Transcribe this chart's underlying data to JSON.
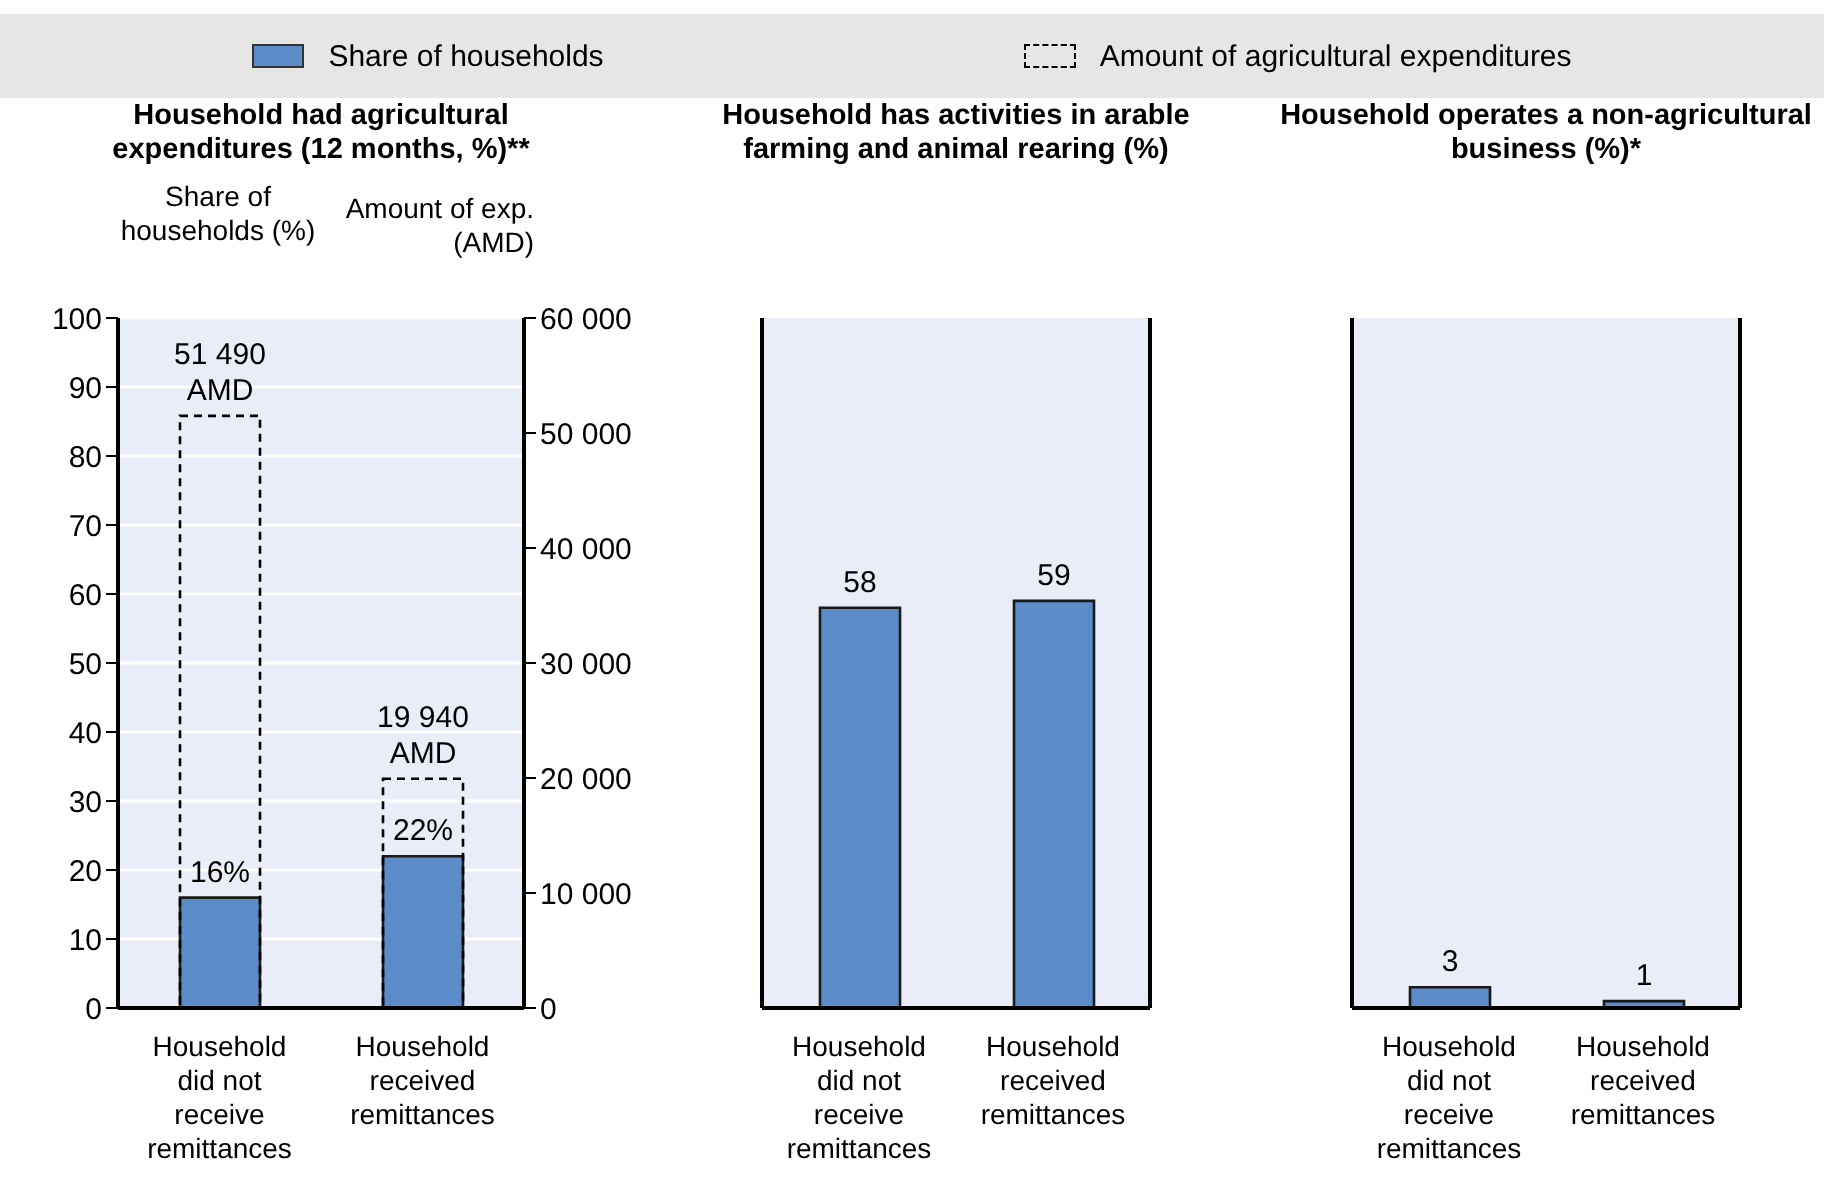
{
  "chart_data": [
    {
      "type": "bar",
      "title": "Household had agricultural expenditures (12 months, %)**",
      "ylabel": "Share of households (%)",
      "y2label": "Amount of exp. (AMD)",
      "categories": [
        "Household did not receive remittances",
        "Household received remittances"
      ],
      "series": [
        {
          "name": "Share of households",
          "color": "#5b8bc8",
          "values": [
            16,
            22
          ],
          "value_labels": [
            "16%",
            "22%"
          ]
        },
        {
          "name": "Amount of agricultural expenditures",
          "color": "#000000",
          "line_style": "dashed",
          "axis": "y2",
          "values": [
            51490,
            19940
          ],
          "value_labels": [
            "51 490 AMD",
            "19 940 AMD"
          ]
        }
      ],
      "ylim": [
        0,
        100
      ],
      "yticks": [
        0,
        10,
        20,
        30,
        40,
        50,
        60,
        70,
        80,
        90,
        100
      ],
      "y2lim": [
        0,
        60000
      ],
      "y2ticks": [
        0,
        {
          "value": 10000,
          "label": "10 000"
        },
        {
          "value": 20000,
          "label": "20 000"
        },
        {
          "value": 30000,
          "label": "30 000"
        },
        {
          "value": 40000,
          "label": "40 000"
        },
        {
          "value": 50000,
          "label": "50 000"
        },
        {
          "value": 60000,
          "label": "60 000"
        }
      ],
      "grid": "y",
      "legend": "top"
    },
    {
      "type": "bar",
      "title": "Household has activities in arable farming and animal rearing (%)",
      "categories": [
        "Household did not receive remittances",
        "Household received remittances"
      ],
      "values": [
        58,
        59
      ],
      "color": "#5b8bc8",
      "ylim": [
        0,
        100
      ],
      "tick_labels": "x",
      "data_labels": true
    },
    {
      "type": "bar",
      "title": "Household operates a non-agricultural business (%)*",
      "categories": [
        "Household did not receive remittances",
        "Household received remittances"
      ],
      "values": [
        3,
        1
      ],
      "color": "#5b8bc8",
      "ylim": [
        0,
        100
      ],
      "tick_labels": "x",
      "data_labels": true
    }
  ]
}
